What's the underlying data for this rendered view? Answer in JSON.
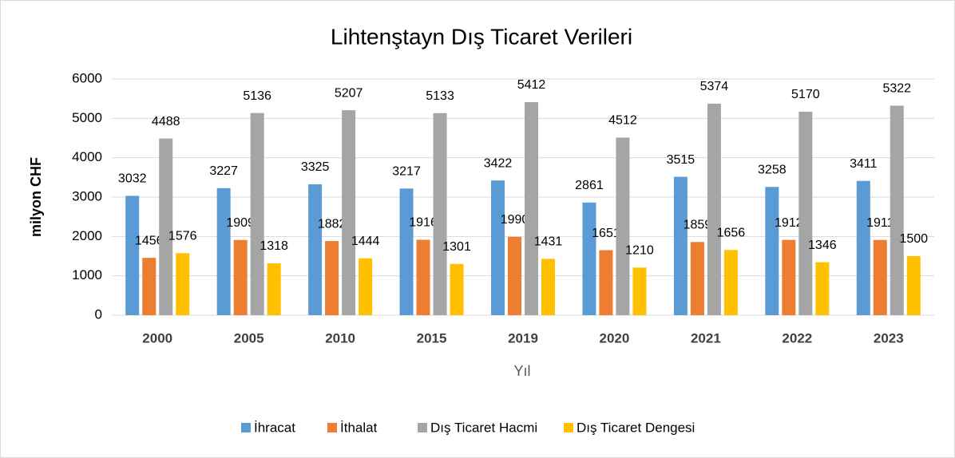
{
  "chart_data": {
    "type": "bar",
    "title": "Lihtenştayn Dış Ticaret Verileri",
    "x_label": "Yıl",
    "y_label": "milyon CHF",
    "categories": [
      "2000",
      "2005",
      "2010",
      "2015",
      "2019",
      "2020",
      "2021",
      "2022",
      "2023"
    ],
    "series": [
      {
        "name": "İhracat",
        "color": "#5b9bd5",
        "values": [
          3032,
          3227,
          3325,
          3217,
          3422,
          2861,
          3515,
          3258,
          3411
        ]
      },
      {
        "name": "İthalat",
        "color": "#ed7d31",
        "values": [
          1456,
          1909,
          1882,
          1916,
          1990,
          1651,
          1859,
          1912,
          1911
        ]
      },
      {
        "name": "Dış Ticaret Hacmi",
        "color": "#a5a5a5",
        "values": [
          4488,
          5136,
          5207,
          5133,
          5412,
          4512,
          5374,
          5170,
          5322
        ]
      },
      {
        "name": "Dış Ticaret Dengesi",
        "color": "#ffc000",
        "values": [
          1576,
          1318,
          1444,
          1301,
          1431,
          1210,
          1656,
          1346,
          1500
        ]
      }
    ],
    "ylim": [
      0,
      6000
    ],
    "yticks": [
      0,
      1000,
      2000,
      3000,
      4000,
      5000,
      6000
    ],
    "grid": true,
    "legend": "bottom"
  }
}
